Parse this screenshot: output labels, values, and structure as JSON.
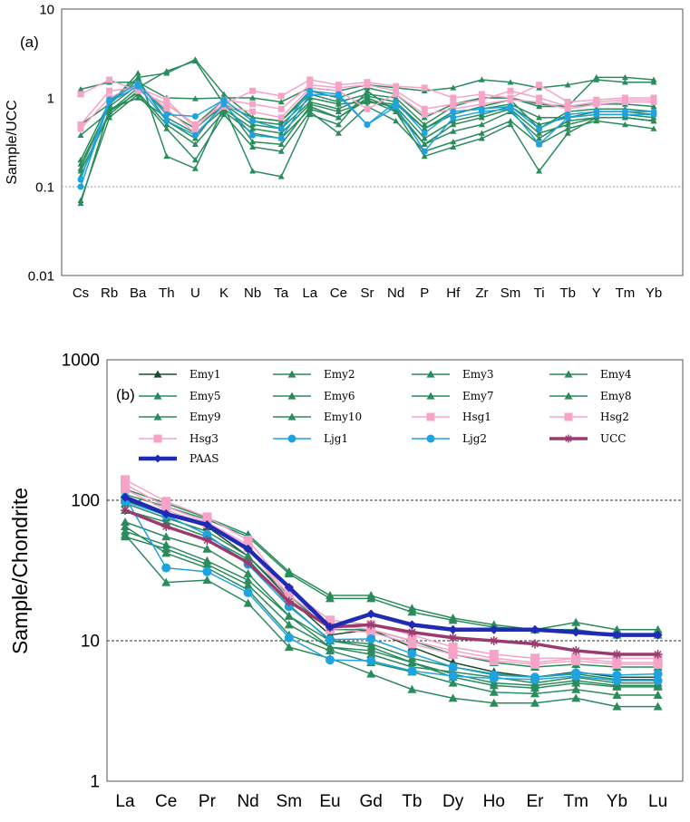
{
  "chart_data": [
    {
      "type": "line",
      "panel_label": "(a)",
      "ylabel": "Sample/UCC",
      "yscale": "log",
      "ylim": [
        0.01,
        10
      ],
      "yticks": [
        "0.01",
        "0.1",
        "1",
        "10"
      ],
      "ref_line": 0.1,
      "categories": [
        "Cs",
        "Rb",
        "Ba",
        "Th",
        "U",
        "K",
        "Nb",
        "Ta",
        "La",
        "Ce",
        "Sr",
        "Nd",
        "P",
        "Hf",
        "Zr",
        "Sm",
        "Ti",
        "Tb",
        "Y",
        "Tm",
        "Yb"
      ],
      "colors": {
        "emy": "#2a8c5c",
        "hsg": "#f5a3c7",
        "ljg": "#1ea3e0"
      },
      "series": [
        {
          "name": "Emy1",
          "group": "emy",
          "values": [
            0.15,
            0.65,
            1.2,
            0.85,
            0.5,
            0.95,
            0.55,
            0.5,
            1.0,
            0.85,
            0.9,
            0.85,
            0.45,
            0.7,
            0.75,
            0.85,
            0.6,
            0.6,
            0.65,
            0.65,
            0.6
          ]
        },
        {
          "name": "Emy2",
          "group": "emy",
          "values": [
            0.38,
            0.7,
            1.3,
            2.0,
            2.6,
            0.85,
            0.6,
            0.55,
            1.2,
            1.0,
            1.3,
            1.1,
            0.6,
            0.85,
            1.0,
            1.0,
            0.85,
            0.8,
            0.85,
            0.85,
            0.8
          ]
        },
        {
          "name": "Emy3",
          "group": "emy",
          "values": [
            1.25,
            1.5,
            1.5,
            1.0,
            0.98,
            1.0,
            1.0,
            0.9,
            1.3,
            1.2,
            1.4,
            1.3,
            1.2,
            1.3,
            1.6,
            1.5,
            1.3,
            1.4,
            1.6,
            1.5,
            1.5
          ]
        },
        {
          "name": "Emy4",
          "group": "emy",
          "values": [
            0.5,
            0.85,
            1.9,
            0.22,
            0.16,
            0.8,
            0.15,
            0.13,
            0.65,
            0.5,
            1.2,
            0.7,
            0.22,
            0.28,
            0.35,
            0.5,
            0.15,
            0.4,
            0.6,
            0.6,
            0.55
          ]
        },
        {
          "name": "Emy5",
          "group": "emy",
          "values": [
            0.07,
            0.6,
            1.1,
            0.45,
            0.2,
            0.65,
            0.28,
            0.25,
            0.7,
            0.4,
            0.8,
            0.55,
            0.25,
            0.32,
            0.4,
            0.55,
            0.3,
            0.45,
            0.55,
            0.5,
            0.45
          ]
        },
        {
          "name": "Emy6",
          "group": "emy",
          "values": [
            0.16,
            0.85,
            1.6,
            0.55,
            0.35,
            0.9,
            0.32,
            0.3,
            0.8,
            0.6,
            1.0,
            0.75,
            0.3,
            0.42,
            0.5,
            0.7,
            0.35,
            0.55,
            0.6,
            0.6,
            0.55
          ]
        },
        {
          "name": "Emy7",
          "group": "emy",
          "values": [
            0.2,
            0.9,
            1.7,
            1.9,
            2.7,
            1.1,
            0.6,
            0.55,
            1.1,
            0.9,
            1.1,
            1.0,
            0.5,
            0.8,
            1.0,
            1.0,
            0.8,
            0.8,
            1.7,
            1.7,
            1.6
          ]
        },
        {
          "name": "Emy8",
          "group": "emy",
          "values": [
            0.065,
            0.75,
            1.0,
            0.6,
            0.4,
            0.75,
            0.45,
            0.4,
            0.85,
            0.7,
            0.9,
            0.8,
            0.35,
            0.55,
            0.65,
            0.8,
            0.5,
            0.6,
            0.7,
            0.7,
            0.65
          ]
        },
        {
          "name": "Emy9",
          "group": "emy",
          "values": [
            0.18,
            0.8,
            1.4,
            0.7,
            0.45,
            0.85,
            0.5,
            0.45,
            0.9,
            0.75,
            1.05,
            0.9,
            0.45,
            0.65,
            0.8,
            0.95,
            0.45,
            0.7,
            0.75,
            0.75,
            0.7
          ]
        },
        {
          "name": "Emy10",
          "group": "emy",
          "values": [
            0.13,
            0.7,
            1.15,
            0.5,
            0.3,
            0.7,
            0.4,
            0.35,
            0.75,
            0.6,
            0.95,
            0.7,
            0.3,
            0.5,
            0.6,
            0.75,
            0.4,
            0.5,
            0.6,
            0.6,
            0.55
          ]
        },
        {
          "name": "Hsg1",
          "group": "hsg",
          "values": [
            1.1,
            1.6,
            1.2,
            0.85,
            0.5,
            0.85,
            1.2,
            1.05,
            1.6,
            1.4,
            1.5,
            1.35,
            1.3,
            1.0,
            1.1,
            1.0,
            1.4,
            0.9,
            0.95,
            1.0,
            1.0
          ]
        },
        {
          "name": "Hsg2",
          "group": "hsg",
          "values": [
            0.5,
            1.2,
            1.3,
            0.95,
            0.45,
            0.95,
            0.85,
            0.75,
            1.4,
            1.3,
            1.4,
            1.2,
            0.75,
            0.85,
            0.95,
            1.2,
            1.0,
            0.8,
            0.9,
            0.95,
            0.95
          ]
        },
        {
          "name": "Hsg3",
          "group": "hsg",
          "values": [
            0.45,
            1.0,
            1.4,
            0.75,
            0.4,
            0.8,
            0.7,
            0.6,
            1.3,
            1.2,
            0.75,
            1.1,
            0.65,
            0.75,
            0.85,
            0.95,
            0.9,
            0.75,
            0.85,
            0.9,
            0.9
          ]
        },
        {
          "name": "Ljg1",
          "group": "ljg",
          "values": [
            0.1,
            0.9,
            1.35,
            0.55,
            0.38,
            0.85,
            0.38,
            0.35,
            1.1,
            1.05,
            0.5,
            0.8,
            0.25,
            0.6,
            0.7,
            0.75,
            0.3,
            0.6,
            0.65,
            0.65,
            0.65
          ]
        },
        {
          "name": "Ljg2",
          "group": "ljg",
          "values": [
            0.12,
            0.95,
            1.45,
            0.65,
            0.62,
            0.95,
            0.55,
            0.45,
            1.2,
            1.1,
            0.5,
            0.9,
            0.4,
            0.7,
            0.75,
            0.8,
            0.45,
            0.65,
            0.7,
            0.7,
            0.7
          ]
        }
      ]
    },
    {
      "type": "line",
      "panel_label": "(b)",
      "ylabel": "Sample/Chondrite",
      "yscale": "log",
      "ylim": [
        1,
        1000
      ],
      "yticks": [
        "1",
        "10",
        "100",
        "1000"
      ],
      "ref_lines": [
        10,
        100
      ],
      "categories": [
        "La",
        "Ce",
        "Pr",
        "Nd",
        "Sm",
        "Eu",
        "Gd",
        "Tb",
        "Dy",
        "Ho",
        "Er",
        "Tm",
        "Yb",
        "Lu"
      ],
      "colors": {
        "emy1": "#1a4d2e",
        "emy": "#2a8c5c",
        "hsg": "#f5a3c7",
        "ljg": "#1ea3e0",
        "ucc": "#9b3a6e",
        "paas": "#1f2ab5"
      },
      "series": [
        {
          "name": "Emy1",
          "group": "emy1",
          "marker": "triangle",
          "width": 1.5,
          "values": [
            100,
            80,
            65,
            40,
            20,
            11,
            12,
            9,
            7,
            6,
            5.5,
            6,
            5.5,
            5.5
          ]
        },
        {
          "name": "Emy2",
          "group": "emy",
          "marker": "triangle",
          "width": 1.5,
          "values": [
            120,
            95,
            75,
            57,
            31,
            21,
            21,
            17,
            14.5,
            13,
            12,
            13.5,
            12,
            12
          ]
        },
        {
          "name": "Emy3",
          "group": "emy",
          "marker": "triangle",
          "width": 1.5,
          "values": [
            110,
            90,
            73,
            55,
            30,
            20,
            20,
            16,
            14,
            12.5,
            12,
            12,
            11,
            11
          ]
        },
        {
          "name": "Emy4",
          "group": "emy",
          "marker": "triangle",
          "width": 1.5,
          "values": [
            55,
            45,
            35,
            25,
            13,
            9,
            8,
            6.5,
            6,
            5.5,
            5,
            5.5,
            5,
            5
          ]
        },
        {
          "name": "Emy5",
          "group": "emy",
          "marker": "triangle",
          "width": 1.5,
          "values": [
            57,
            26,
            27,
            18.5,
            9,
            7.5,
            5.8,
            4.5,
            3.9,
            3.6,
            3.6,
            3.9,
            3.4,
            3.4
          ]
        },
        {
          "name": "Emy6",
          "group": "emy",
          "marker": "triangle",
          "width": 1.5,
          "values": [
            60,
            48,
            37,
            27,
            15,
            10,
            9,
            7,
            5.5,
            4.8,
            4.6,
            5,
            4.7,
            4.7
          ]
        },
        {
          "name": "Emy7",
          "group": "emy",
          "marker": "triangle",
          "width": 1.5,
          "values": [
            95,
            75,
            60,
            40,
            21,
            12,
            12,
            10,
            8,
            7,
            6.5,
            6.8,
            6.5,
            6.5
          ]
        },
        {
          "name": "Emy8",
          "group": "emy",
          "marker": "triangle",
          "width": 1.5,
          "values": [
            85,
            70,
            55,
            38,
            18,
            10,
            9.5,
            7.5,
            6.5,
            5.8,
            5.5,
            5.8,
            5.3,
            5.3
          ]
        },
        {
          "name": "Emy9",
          "group": "emy",
          "marker": "triangle",
          "width": 1.5,
          "values": [
            70,
            55,
            45,
            30,
            15,
            9,
            8.5,
            7,
            5.8,
            5,
            4.8,
            5.2,
            4.8,
            4.8
          ]
        },
        {
          "name": "Emy10",
          "group": "emy",
          "marker": "triangle",
          "width": 1.5,
          "values": [
            65,
            42,
            33,
            23,
            11,
            8.5,
            7,
            6,
            5,
            4.3,
            4.2,
            4.5,
            4.1,
            4.1
          ]
        },
        {
          "name": "Hsg1",
          "group": "hsg",
          "marker": "square",
          "width": 1.5,
          "values": [
            140,
            98,
            76,
            52,
            23,
            14,
            13,
            11,
            9,
            8,
            7.5,
            7.5,
            7.5,
            7.5
          ]
        },
        {
          "name": "Hsg2",
          "group": "hsg",
          "marker": "square",
          "width": 1.5,
          "values": [
            130,
            90,
            70,
            48,
            21,
            13,
            12,
            10,
            8.5,
            7.5,
            7,
            7.5,
            7,
            7
          ]
        },
        {
          "name": "Hsg3",
          "group": "hsg",
          "marker": "square",
          "width": 1.5,
          "values": [
            120,
            85,
            68,
            46,
            20,
            12,
            11.5,
            9.5,
            8,
            7.2,
            6.8,
            7.2,
            6.8,
            6.8
          ]
        },
        {
          "name": "Ljg1",
          "group": "ljg",
          "marker": "circle",
          "width": 1.5,
          "values": [
            105,
            33,
            31,
            22,
            10.5,
            7.3,
            7.2,
            6.1,
            5.6,
            5.4,
            5.3,
            5.6,
            5.2,
            5.2
          ]
        },
        {
          "name": "Ljg2",
          "group": "ljg",
          "marker": "circle",
          "width": 1.5,
          "values": [
            98,
            78,
            57,
            35,
            17.5,
            10.2,
            10.3,
            8.1,
            6.5,
            5.7,
            5.5,
            5.9,
            5.7,
            5.8
          ]
        },
        {
          "name": "UCC",
          "group": "ucc",
          "marker": "star",
          "width": 3.5,
          "values": [
            85,
            65,
            52,
            36,
            19,
            12.5,
            13,
            11.5,
            10.5,
            10,
            9.5,
            8.5,
            8,
            8
          ]
        },
        {
          "name": "PAAS",
          "group": "paas",
          "marker": "diamond",
          "width": 4.5,
          "values": [
            105,
            80,
            67,
            45,
            24,
            12.5,
            15.5,
            13,
            12,
            12,
            12,
            11.5,
            11,
            11
          ]
        }
      ]
    }
  ]
}
